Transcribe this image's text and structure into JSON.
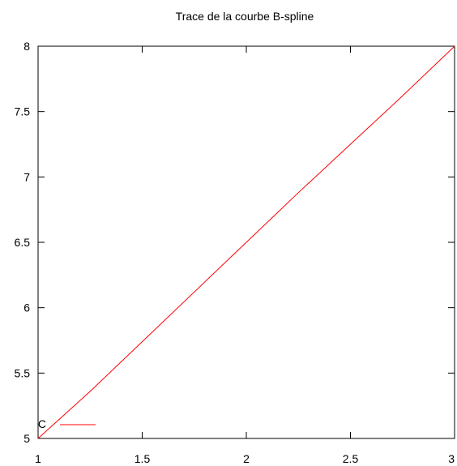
{
  "chart_data": {
    "type": "line",
    "title": "Trace de la courbe B-spline",
    "xlabel": "",
    "ylabel": "",
    "xlim": [
      1,
      3
    ],
    "ylim": [
      5,
      8
    ],
    "grid": false,
    "legend_position": "bottom-left",
    "x_ticks": [
      {
        "value": 1,
        "label": "1"
      },
      {
        "value": 1.5,
        "label": "1.5"
      },
      {
        "value": 2,
        "label": "2"
      },
      {
        "value": 2.5,
        "label": "2.5"
      },
      {
        "value": 3,
        "label": "3"
      }
    ],
    "y_ticks": [
      {
        "value": 5,
        "label": "5"
      },
      {
        "value": 5.5,
        "label": "5.5"
      },
      {
        "value": 6,
        "label": "6"
      },
      {
        "value": 6.5,
        "label": "6.5"
      },
      {
        "value": 7,
        "label": "7"
      },
      {
        "value": 7.5,
        "label": "7.5"
      },
      {
        "value": 8,
        "label": "8"
      }
    ],
    "series": [
      {
        "name": "C",
        "color": "#ff0000",
        "x": [
          1,
          1.25,
          1.5,
          1.75,
          2,
          2.25,
          2.5,
          2.75,
          3
        ],
        "y": [
          5,
          5.36,
          5.74,
          6.12,
          6.5,
          6.88,
          7.25,
          7.62,
          8
        ]
      }
    ]
  }
}
